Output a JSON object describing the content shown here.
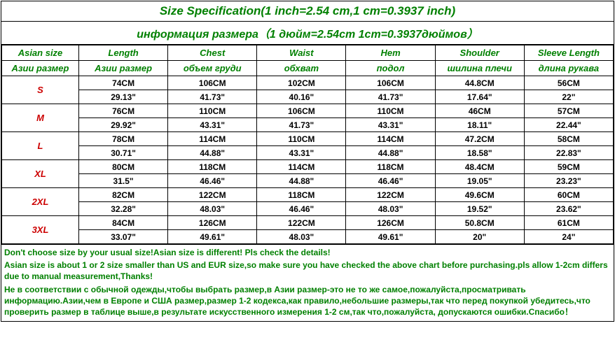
{
  "title_en": "Size Specification(1 inch=2.54 cm,1 cm=0.3937 inch)",
  "title_ru": "информация размера（1 дюйм=2.54cm 1cm=0.3937дюймов）",
  "headers_en": [
    "Asian size",
    "Length",
    "Chest",
    "Waist",
    "Hem",
    "Shoulder",
    "Sleeve Length"
  ],
  "headers_ru": [
    "Азии размер",
    "Азии размер",
    "объем груди",
    "обхват",
    "подол",
    "шилина плечи",
    "длина рукава"
  ],
  "sizes": [
    {
      "label": "S",
      "cm": [
        "74CM",
        "106CM",
        "102CM",
        "106CM",
        "44.8CM",
        "56CM"
      ],
      "in": [
        "29.13\"",
        "41.73\"",
        "40.16\"",
        "41.73\"",
        "17.64\"",
        "22\""
      ]
    },
    {
      "label": "M",
      "cm": [
        "76CM",
        "110CM",
        "106CM",
        "110CM",
        "46CM",
        "57CM"
      ],
      "in": [
        "29.92\"",
        "43.31\"",
        "41.73\"",
        "43.31\"",
        "18.11\"",
        "22.44\""
      ]
    },
    {
      "label": "L",
      "cm": [
        "78CM",
        "114CM",
        "110CM",
        "114CM",
        "47.2CM",
        "58CM"
      ],
      "in": [
        "30.71\"",
        "44.88\"",
        "43.31\"",
        "44.88\"",
        "18.58\"",
        "22.83\""
      ]
    },
    {
      "label": "XL",
      "cm": [
        "80CM",
        "118CM",
        "114CM",
        "118CM",
        "48.4CM",
        "59CM"
      ],
      "in": [
        "31.5\"",
        "46.46\"",
        "44.88\"",
        "46.46\"",
        "19.05\"",
        "23.23\""
      ]
    },
    {
      "label": "2XL",
      "cm": [
        "82CM",
        "122CM",
        "118CM",
        "122CM",
        "49.6CM",
        "60CM"
      ],
      "in": [
        "32.28\"",
        "48.03\"",
        "46.46\"",
        "48.03\"",
        "19.52\"",
        "23.62\""
      ]
    },
    {
      "label": "3XL",
      "cm": [
        "84CM",
        "126CM",
        "122CM",
        "126CM",
        "50.8CM",
        "61CM"
      ],
      "in": [
        "33.07\"",
        "49.61\"",
        "48.03\"",
        "49.61\"",
        "20\"",
        "24\""
      ]
    }
  ],
  "footer_en_1": "Don't choose size by your usual size!Asian size is different! Pls check the details!",
  "footer_en_2": "Asian size is about 1 or 2 size smaller than US and EUR size,so make sure you have checked the above chart before purchasing.pls allow 1-2cm differs due to manual measurement,Thanks!",
  "footer_ru_1": "Не в соответствии с обычной одежды,чтобы выбрать размер,в Азии размер-это не то же самое,пожалуйста,просматривать информацию.Азии,чем в Европе и США размер,размер 1-2 кодекса,как правило,небольшие размеры,так что перед покупкой убедитесь,что проверить размер в таблице выше,в результате искусственного измерения 1-2 см,так что,пожалуйста, допускаются ошибки.Спасибо！",
  "colors": {
    "accent": "#008000",
    "size_label": "#cc0000",
    "border": "#000000",
    "bg": "#ffffff"
  }
}
